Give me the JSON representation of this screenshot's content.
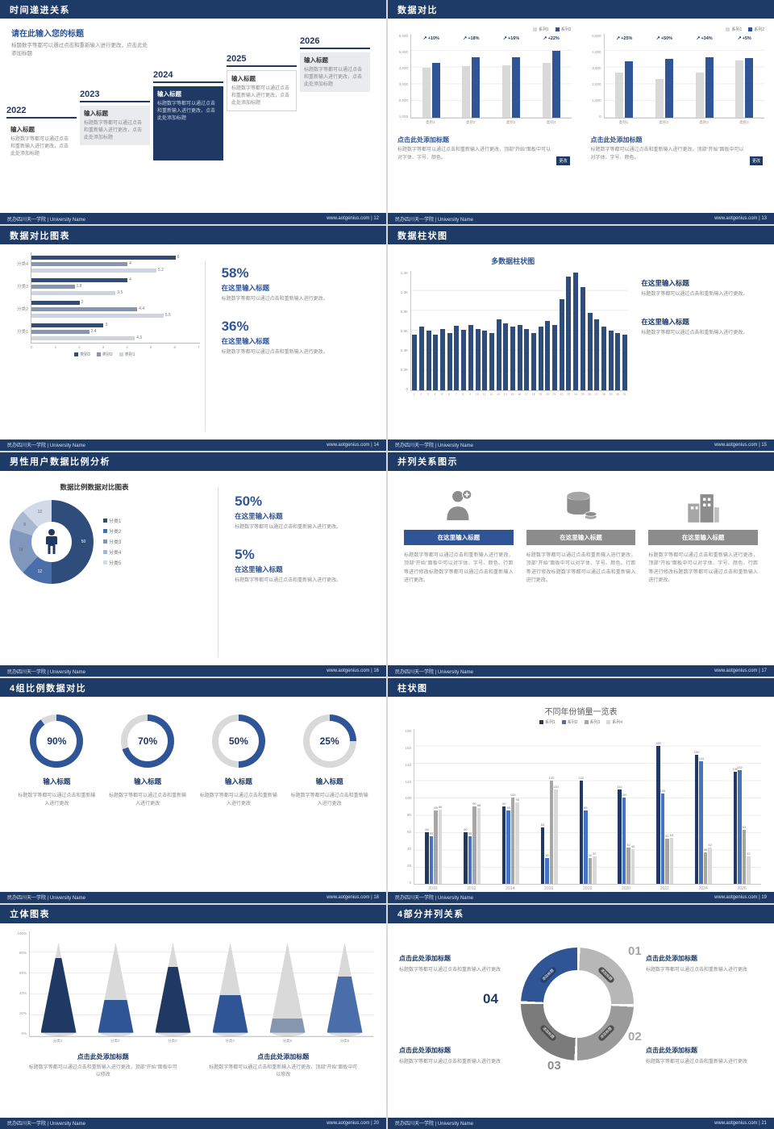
{
  "theme": {
    "navy": "#1e3a66",
    "accent_blue": "#2f5597",
    "light_gray": "#d9d9d9",
    "text_gray": "#8a8a8a"
  },
  "footer": {
    "left": "民办四川天一学院 | University Name",
    "site": "www.aotgenius.com"
  },
  "s12": {
    "header": "时间递进关系",
    "footer_right": "www.aotgenius.com | 12",
    "intro_title": "请在此输入您的标题",
    "intro_text": "标题数字等都可以通过点击和重新输入进行更改，点击此处添加标题",
    "steps": [
      {
        "year": "2022",
        "title": "输入标题",
        "text": "标题数字等都可以通过点击和重新输入进行更改，点击此处添加标题"
      },
      {
        "year": "2023",
        "title": "输入标题",
        "text": "标题数字等都可以通过点击和重新输入进行更改，点击此处添加标题"
      },
      {
        "year": "2024",
        "title": "输入标题",
        "text": "标题数字等都可以通过点击和重新输入进行更改，点击此处添加标题"
      },
      {
        "year": "2025",
        "title": "输入标题",
        "text": "标题数字等都可以通过点击和重新输入进行更改，点击此处添加标题"
      },
      {
        "year": "2026",
        "title": "输入标题",
        "text": "标题数字等都可以通过点击和重新输入进行更改，点击此处添加标题"
      }
    ]
  },
  "s13": {
    "header": "数据对比",
    "footer_right": "www.aotgenius.com | 13",
    "blocks": [
      {
        "title": "点击此处添加标题",
        "text": "标题数字等都可以通过点击和重新输入进行更改，顶部“开始”面板中可以对字体、字号、颜色。",
        "badge": "更改"
      },
      {
        "title": "点击此处添加标题",
        "text": "标题数字等都可以通过点击和重新输入进行更改，顶部“开始”面板中可以对字体、字号、颜色。",
        "badge": "更改"
      }
    ]
  },
  "s14": {
    "header": "数据对比图表",
    "footer_right": "www.aotgenius.com | 14",
    "stats": [
      {
        "pct": "58%",
        "title": "在这里输入标题",
        "text": "标题数字等都可以通过点击和重新输入进行更改。"
      },
      {
        "pct": "36%",
        "title": "在这里输入标题",
        "text": "标题数字等都可以通过点击和重新输入进行更改。"
      }
    ]
  },
  "s15": {
    "header": "数据柱状图",
    "footer_right": "www.aotgenius.com | 15",
    "stats": [
      {
        "title": "在这里输入标题",
        "text": "标题数字等都可以通过点击和重新输入进行更改。"
      },
      {
        "title": "在这里输入标题",
        "text": "标题数字等都可以通过点击和重新输入进行更改。"
      }
    ]
  },
  "s16": {
    "header": "男性用户数据比例分析",
    "footer_right": "www.aotgenius.com | 16",
    "stats": [
      {
        "pct": "50%",
        "title": "在这里输入标题",
        "text": "标题数字等都可以通过点击和重新输入进行更改。"
      },
      {
        "pct": "5%",
        "title": "在这里输入标题",
        "text": "标题数字等都可以通过点击和重新输入进行更改。"
      }
    ]
  },
  "s17": {
    "header": "并列关系图示",
    "footer_right": "www.aotgenius.com | 17",
    "items": [
      {
        "title": "在这里输入标题",
        "text": "标题数字等都可以通过点击和重新输入进行更改，顶部“开始”面板中可以对字体、字号、颜色、行距等进行修改标题数字等都可以通过点击和重新输入进行更改。"
      },
      {
        "title": "在这里输入标题",
        "text": "标题数字等都可以通过点击和重新输入进行更改，顶部“开始”面板中可以对字体、字号、颜色、行距等进行修改标题数字等都可以通过点击和重新输入进行更改。"
      },
      {
        "title": "在这里输入标题",
        "text": "标题数字等都可以通过点击和重新输入进行更改，顶部“开始”面板中可以对字体、字号、颜色、行距等进行修改标题数字等都可以通过点击和重新输入进行更改。"
      }
    ]
  },
  "s18": {
    "header": "4组比例数据对比",
    "footer_right": "www.aotgenius.com | 18",
    "items": [
      {
        "pct": "90%",
        "title": "输入标题",
        "text": "标题数字等都可以通过点击和重新输入进行更改"
      },
      {
        "pct": "70%",
        "title": "输入标题",
        "text": "标题数字等都可以通过点击和重新输入进行更改"
      },
      {
        "pct": "50%",
        "title": "输入标题",
        "text": "标题数字等都可以通过点击和重新输入进行更改"
      },
      {
        "pct": "25%",
        "title": "输入标题",
        "text": "标题数字等都可以通过点击和重新输入进行更改"
      }
    ]
  },
  "s19": {
    "header": "柱状图",
    "footer_right": "www.aotgenius.com | 19"
  },
  "s20": {
    "header": "立体图表",
    "footer_right": "www.aotgenius.com | 20",
    "blocks": [
      {
        "title": "点击此处添加标题",
        "text": "标题数字等都可以通过点击和重新输入进行更改，顶部“开始”面板中可以修改"
      },
      {
        "title": "点击此处添加标题",
        "text": "标题数字等都可以通过点击和重新输入进行更改，顶部“开始”面板中可以修改"
      }
    ]
  },
  "s21": {
    "header": "4部分并列关系",
    "footer_right": "www.aotgenius.com | 21",
    "numbers": [
      "01",
      "02",
      "03",
      "04"
    ],
    "blocks": [
      {
        "title": "点击此处添加标题",
        "text": "标题数字等都可以通过点击和重新输入进行更改"
      },
      {
        "title": "点击此处添加标题",
        "text": "标题数字等都可以通过点击和重新输入进行更改"
      },
      {
        "title": "点击此处添加标题",
        "text": "标题数字等都可以通过点击和重新输入进行更改"
      },
      {
        "title": "点击此处添加标题",
        "text": "标题数字等都可以通过点击和重新输入进行更改"
      }
    ]
  },
  "chart_data": [
    {
      "id": "compare-left",
      "type": "bar",
      "categories": [
        "类别1",
        "类别2",
        "类别3",
        "类别4"
      ],
      "series": [
        {
          "name": "系列1",
          "color": "#d9d9d9",
          "values": [
            4000,
            4100,
            4200,
            4400
          ]
        },
        {
          "name": "系列2",
          "color": "#2f5597",
          "values": [
            4400,
            4840,
            4870,
            5370
          ]
        }
      ],
      "group_labels": [
        "+10%",
        "+18%",
        "+16%",
        "+22%"
      ],
      "ylim": [
        0,
        6000
      ],
      "yticks": [
        "6,000",
        "5,000",
        "4,000",
        "3,000",
        "2,000",
        "1,000"
      ]
    },
    {
      "id": "compare-right",
      "type": "bar",
      "categories": [
        "类别1",
        "类别2",
        "类别3",
        "类别4"
      ],
      "series": [
        {
          "name": "系列1",
          "color": "#d9d9d9",
          "values": [
            3000,
            2600,
            3000,
            3800
          ]
        },
        {
          "name": "系列2",
          "color": "#2f5597",
          "values": [
            3750,
            3900,
            4020,
            3990
          ]
        }
      ],
      "group_labels": [
        "+25%",
        "+50%",
        "+34%",
        "+5%"
      ],
      "ylim": [
        0,
        5000
      ],
      "yticks": [
        "5,000",
        "4,000",
        "3,000",
        "2,000",
        "1,000",
        "0"
      ]
    },
    {
      "id": "compare-grouped-hbar",
      "type": "bar",
      "orientation": "horizontal",
      "series_names": [
        "类别3",
        "类别2",
        "类别1"
      ],
      "colors": [
        "#2e4d7b",
        "#8496b0",
        "#cdd5e3"
      ],
      "rows": [
        {
          "label": "分类4",
          "values": [
            6,
            4,
            5.2
          ]
        },
        {
          "label": "分类3",
          "values": [
            4,
            1.8,
            3.5
          ]
        },
        {
          "label": "分类2",
          "values": [
            2,
            4.4,
            5.5
          ]
        },
        {
          "label": "分类1",
          "values": [
            3,
            2.4,
            4.3
          ]
        }
      ],
      "xlim": [
        0,
        7
      ],
      "xticks": [
        "0",
        "1",
        "2",
        "3",
        "4",
        "5",
        "6",
        "7"
      ]
    },
    {
      "id": "multi-column",
      "type": "bar",
      "title": "多数据柱状图",
      "color": "#2e4d7b",
      "x": [
        "1",
        "2",
        "3",
        "4",
        "5",
        "6",
        "7",
        "8",
        "9",
        "10",
        "11",
        "12",
        "13",
        "14",
        "15",
        "16",
        "17",
        "18",
        "19",
        "20",
        "21",
        "22",
        "23",
        "24",
        "25",
        "26",
        "27",
        "28",
        "29",
        "30",
        "31"
      ],
      "values": [
        560,
        640,
        600,
        560,
        620,
        580,
        650,
        610,
        660,
        620,
        600,
        580,
        720,
        680,
        640,
        660,
        620,
        580,
        640,
        700,
        660,
        920,
        1150,
        1190,
        1040,
        780,
        720,
        640,
        600,
        580,
        560
      ],
      "ylim": [
        0,
        1200
      ],
      "yticks": [
        "1.2K",
        "1.0K",
        "0.8K",
        "0.6K",
        "0.4K",
        "0.2K",
        "0"
      ]
    },
    {
      "id": "male-user-donut",
      "type": "pie",
      "title": "数据比例数据对比图表",
      "segments": [
        {
          "label": "分类1",
          "value": 50,
          "color": "#2e4d7b"
        },
        {
          "label": "分类2",
          "value": 12,
          "color": "#4a6ea9"
        },
        {
          "label": "分类3",
          "value": 18,
          "color": "#7f97bd"
        },
        {
          "label": "分类4",
          "value": 8,
          "color": "#a9b8d1"
        },
        {
          "label": "分类5",
          "value": 12,
          "color": "#d2dae8"
        }
      ]
    },
    {
      "id": "progress-rings",
      "type": "donut",
      "values": [
        90,
        70,
        50,
        25
      ],
      "color": "#2f5597",
      "track": "#d9d9d9"
    },
    {
      "id": "yearly-sales",
      "type": "bar",
      "title": "不同年份销量一览表",
      "categories": [
        "2010",
        "2012",
        "2014",
        "2016",
        "2018",
        "2020",
        "2022",
        "2024",
        "2026"
      ],
      "series": [
        {
          "name": "系列1",
          "color": "#1f3864",
          "values": [
            60,
            60,
            90,
            65,
            120,
            110,
            160,
            150,
            130
          ]
        },
        {
          "name": "系列2",
          "color": "#4472c4",
          "values": [
            55,
            55,
            85,
            30,
            85,
            100,
            105,
            143,
            132
          ]
        },
        {
          "name": "系列3",
          "color": "#a6a6a6",
          "values": [
            85,
            90,
            100,
            120,
            30,
            42,
            52,
            36,
            63
          ]
        },
        {
          "name": "系列4",
          "color": "#d9d9d9",
          "values": [
            86,
            88,
            95,
            110,
            32,
            40,
            53,
            42,
            32
          ]
        }
      ],
      "show_values": true,
      "ylim": [
        0,
        180
      ],
      "yticks": [
        "180",
        "160",
        "140",
        "120",
        "100",
        "80",
        "60",
        "40",
        "20",
        "0"
      ]
    },
    {
      "id": "cone-chart",
      "type": "bar",
      "style": "cone",
      "categories": [
        "分类1",
        "分类2",
        "分类3",
        "分类4",
        "分类5",
        "分类6"
      ],
      "values": [
        80,
        35,
        70,
        40,
        15,
        60
      ],
      "colors": [
        "#1f3864",
        "#2f5597",
        "#1f3864",
        "#2f5597",
        "#8496b0",
        "#4a6ea9"
      ],
      "yticks": [
        "100%",
        "80%",
        "60%",
        "40%",
        "20%",
        "0%"
      ]
    },
    {
      "id": "four-part-ring",
      "type": "pie",
      "segment_text": "添加标题",
      "segments": [
        {
          "label": "01",
          "color": "#b7b7b7"
        },
        {
          "label": "02",
          "color": "#9a9a9a"
        },
        {
          "label": "03",
          "color": "#7b7b7b"
        },
        {
          "label": "04",
          "color": "#2f5597"
        }
      ]
    }
  ]
}
